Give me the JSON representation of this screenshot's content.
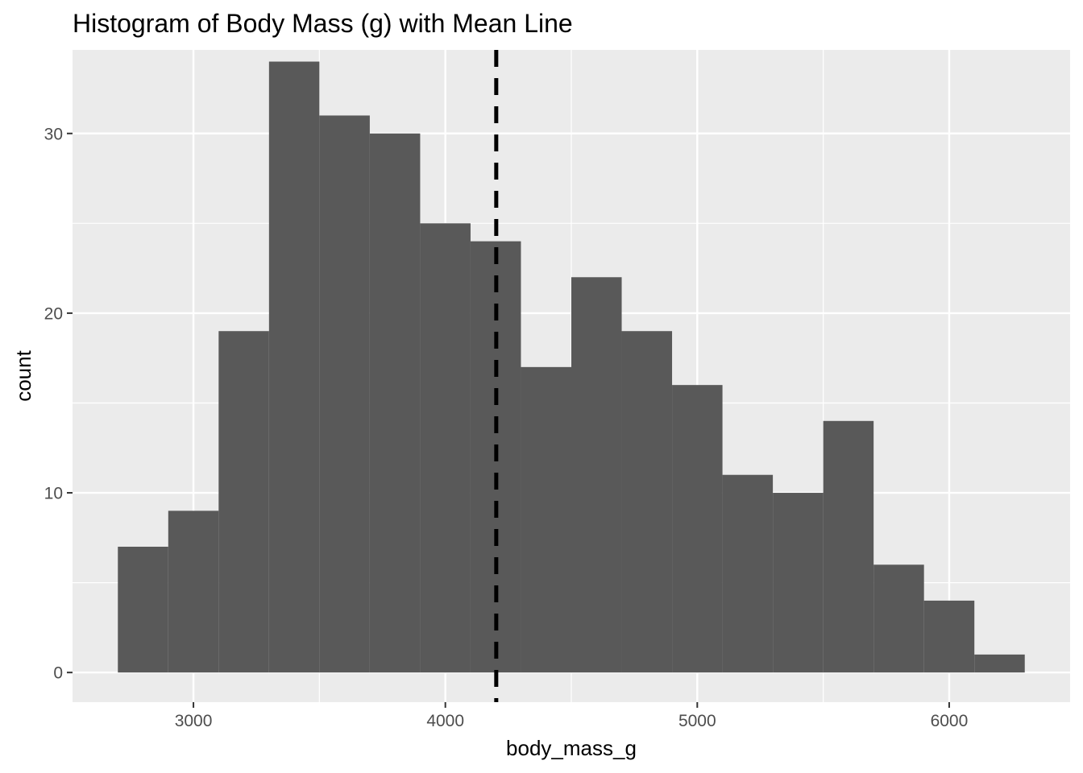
{
  "chart_data": {
    "type": "bar",
    "title": "Histogram of Body Mass (g) with Mean Line",
    "xlabel": "body_mass_g",
    "ylabel": "count",
    "xlim": [
      2520,
      6480
    ],
    "ylim": [
      -1.65,
      34.65
    ],
    "bin_width": 200,
    "bins": [
      {
        "start": 2700,
        "end": 2900,
        "count": 7
      },
      {
        "start": 2900,
        "end": 3100,
        "count": 9
      },
      {
        "start": 3100,
        "end": 3300,
        "count": 19
      },
      {
        "start": 3300,
        "end": 3500,
        "count": 34
      },
      {
        "start": 3500,
        "end": 3700,
        "count": 31
      },
      {
        "start": 3700,
        "end": 3900,
        "count": 30
      },
      {
        "start": 3900,
        "end": 4100,
        "count": 25
      },
      {
        "start": 4100,
        "end": 4300,
        "count": 24
      },
      {
        "start": 4300,
        "end": 4500,
        "count": 17
      },
      {
        "start": 4500,
        "end": 4700,
        "count": 22
      },
      {
        "start": 4700,
        "end": 4900,
        "count": 19
      },
      {
        "start": 4900,
        "end": 5100,
        "count": 16
      },
      {
        "start": 5100,
        "end": 5300,
        "count": 11
      },
      {
        "start": 5300,
        "end": 5500,
        "count": 10
      },
      {
        "start": 5500,
        "end": 5700,
        "count": 14
      },
      {
        "start": 5700,
        "end": 5900,
        "count": 6
      },
      {
        "start": 5900,
        "end": 6100,
        "count": 4
      },
      {
        "start": 6100,
        "end": 6300,
        "count": 1
      }
    ],
    "mean_line": {
      "x": 4202,
      "style": "dashed"
    },
    "x_ticks": [
      {
        "value": 3000,
        "label": "3000"
      },
      {
        "value": 4000,
        "label": "4000"
      },
      {
        "value": 5000,
        "label": "5000"
      },
      {
        "value": 6000,
        "label": "6000"
      }
    ],
    "x_minor": [
      3500,
      4500,
      5500
    ],
    "y_ticks": [
      {
        "value": 0,
        "label": "0"
      },
      {
        "value": 10,
        "label": "10"
      },
      {
        "value": 20,
        "label": "20"
      },
      {
        "value": 30,
        "label": "30"
      }
    ],
    "y_minor": [
      5,
      15,
      25
    ],
    "grid": true,
    "legend": "none",
    "colors": {
      "bar": "#595959",
      "panel": "#ebebeb",
      "grid": "#ffffff",
      "mean_line": "#000000",
      "tick_text": "#4d4d4d",
      "tick_mark": "#333333"
    }
  }
}
